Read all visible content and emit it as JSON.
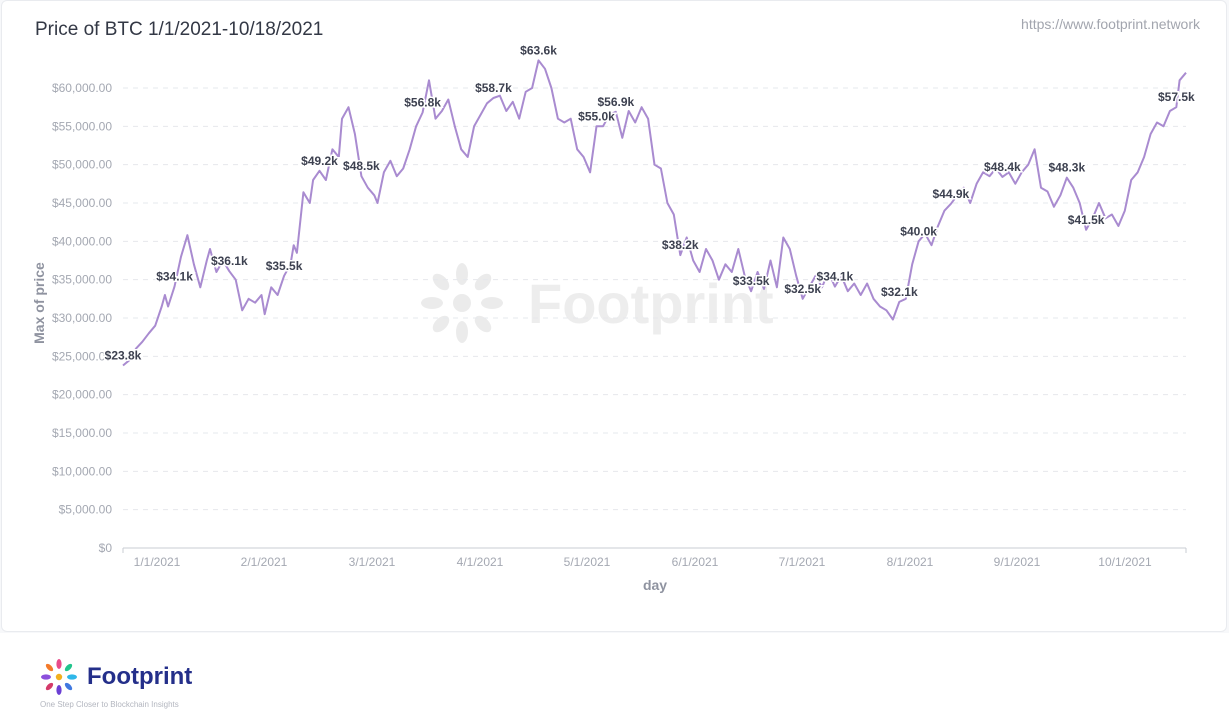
{
  "header": {
    "title": "Price of BTC 1/1/2021-10/18/2021",
    "source_url": "https://www.footprint.network"
  },
  "footer": {
    "brand_name": "Footprint",
    "tagline": "One Step Closer to Blockchain Insights"
  },
  "watermark": {
    "text": "Footprint"
  },
  "colors": {
    "line": "#a98bd0",
    "grid": "#e6e8ec",
    "axis_text": "#a4a8b2",
    "axis_title": "#8f93a0",
    "label": "#3d4150",
    "brand": "#242f8a"
  },
  "chart_data": {
    "type": "line",
    "title": "Price of BTC 1/1/2021-10/18/2021",
    "xlabel": "day",
    "ylabel": "Max of price",
    "x_ticks": [
      "1/1/2021",
      "2/1/2021",
      "3/1/2021",
      "4/1/2021",
      "5/1/2021",
      "6/1/2021",
      "7/1/2021",
      "8/1/2021",
      "9/1/2021",
      "10/1/2021"
    ],
    "y_ticks": [
      "$0",
      "$5,000.00",
      "$10,000.00",
      "$15,000.00",
      "$20,000.00",
      "$25,000.00",
      "$30,000.00",
      "$35,000.00",
      "$40,000.00",
      "$45,000.00",
      "$50,000.00",
      "$55,000.00",
      "$60,000.00"
    ],
    "ylim": [
      0,
      60000
    ],
    "grid": true,
    "series": [
      {
        "points": [
          [
            "2021-01-01",
            23800
          ],
          [
            "2021-01-03",
            24500
          ],
          [
            "2021-01-05",
            26000
          ],
          [
            "2021-01-07",
            26900
          ],
          [
            "2021-01-09",
            28000
          ],
          [
            "2021-01-11",
            29000
          ],
          [
            "2021-01-13",
            31500
          ],
          [
            "2021-01-14",
            33000
          ],
          [
            "2021-01-15",
            31500
          ],
          [
            "2021-01-17",
            34100
          ],
          [
            "2021-01-19",
            38000
          ],
          [
            "2021-01-21",
            40800
          ],
          [
            "2021-01-23",
            37000
          ],
          [
            "2021-01-25",
            34000
          ],
          [
            "2021-01-27",
            37500
          ],
          [
            "2021-01-28",
            39000
          ],
          [
            "2021-01-30",
            36000
          ],
          [
            "2021-02-01",
            37500
          ],
          [
            "2021-02-03",
            36100
          ],
          [
            "2021-02-05",
            35000
          ],
          [
            "2021-02-07",
            31000
          ],
          [
            "2021-02-09",
            32500
          ],
          [
            "2021-02-11",
            32000
          ],
          [
            "2021-02-13",
            33000
          ],
          [
            "2021-02-14",
            30500
          ],
          [
            "2021-02-16",
            34000
          ],
          [
            "2021-02-18",
            33000
          ],
          [
            "2021-02-20",
            35500
          ],
          [
            "2021-02-22",
            37000
          ],
          [
            "2021-02-23",
            39500
          ],
          [
            "2021-02-24",
            38500
          ],
          [
            "2021-02-26",
            46400
          ],
          [
            "2021-02-28",
            45000
          ],
          [
            "2021-03-01",
            48000
          ],
          [
            "2021-03-03",
            49200
          ],
          [
            "2021-03-05",
            48000
          ],
          [
            "2021-03-07",
            52000
          ],
          [
            "2021-03-09",
            51000
          ],
          [
            "2021-03-10",
            56000
          ],
          [
            "2021-03-12",
            57500
          ],
          [
            "2021-03-14",
            54000
          ],
          [
            "2021-03-16",
            48500
          ],
          [
            "2021-03-18",
            47000
          ],
          [
            "2021-03-20",
            46000
          ],
          [
            "2021-03-21",
            45000
          ],
          [
            "2021-03-23",
            49000
          ],
          [
            "2021-03-25",
            50500
          ],
          [
            "2021-03-27",
            48500
          ],
          [
            "2021-03-29",
            49500
          ],
          [
            "2021-03-31",
            52000
          ],
          [
            "2021-04-02",
            55000
          ],
          [
            "2021-04-04",
            56800
          ],
          [
            "2021-04-06",
            61000
          ],
          [
            "2021-04-08",
            56000
          ],
          [
            "2021-04-10",
            57000
          ],
          [
            "2021-04-12",
            58500
          ],
          [
            "2021-04-14",
            55000
          ],
          [
            "2021-04-16",
            52000
          ],
          [
            "2021-04-18",
            51000
          ],
          [
            "2021-04-20",
            55000
          ],
          [
            "2021-04-22",
            56500
          ],
          [
            "2021-04-24",
            58000
          ],
          [
            "2021-04-26",
            58700
          ],
          [
            "2021-04-28",
            59000
          ],
          [
            "2021-04-30",
            57000
          ],
          [
            "2021-05-02",
            58200
          ],
          [
            "2021-05-04",
            56000
          ],
          [
            "2021-05-06",
            59500
          ],
          [
            "2021-05-08",
            60000
          ],
          [
            "2021-05-10",
            63600
          ],
          [
            "2021-05-12",
            62500
          ],
          [
            "2021-05-14",
            60000
          ],
          [
            "2021-05-16",
            56000
          ],
          [
            "2021-05-18",
            55500
          ],
          [
            "2021-05-20",
            56000
          ],
          [
            "2021-05-22",
            52000
          ],
          [
            "2021-05-24",
            51000
          ],
          [
            "2021-05-26",
            49000
          ],
          [
            "2021-05-28",
            55000
          ],
          [
            "2021-05-30",
            55000
          ],
          [
            "2021-06-01",
            56500
          ],
          [
            "2021-06-03",
            56900
          ],
          [
            "2021-06-05",
            53500
          ],
          [
            "2021-06-07",
            57000
          ],
          [
            "2021-06-09",
            55500
          ],
          [
            "2021-06-11",
            57500
          ],
          [
            "2021-06-13",
            56000
          ],
          [
            "2021-06-15",
            50000
          ],
          [
            "2021-06-17",
            49500
          ],
          [
            "2021-06-19",
            45000
          ],
          [
            "2021-06-21",
            43500
          ],
          [
            "2021-06-23",
            38200
          ],
          [
            "2021-06-25",
            40500
          ],
          [
            "2021-06-27",
            37500
          ],
          [
            "2021-06-29",
            36000
          ],
          [
            "2021-07-01",
            39000
          ],
          [
            "2021-07-03",
            37500
          ],
          [
            "2021-07-05",
            35000
          ],
          [
            "2021-07-07",
            37000
          ],
          [
            "2021-07-09",
            36000
          ],
          [
            "2021-07-11",
            39000
          ],
          [
            "2021-07-13",
            35500
          ],
          [
            "2021-07-15",
            33500
          ],
          [
            "2021-07-17",
            36000
          ],
          [
            "2021-07-19",
            33800
          ],
          [
            "2021-07-21",
            37500
          ],
          [
            "2021-07-23",
            34000
          ],
          [
            "2021-07-25",
            40500
          ],
          [
            "2021-07-27",
            39000
          ],
          [
            "2021-07-29",
            35500
          ],
          [
            "2021-07-31",
            32500
          ],
          [
            "2021-08-02",
            34000
          ],
          [
            "2021-08-04",
            35500
          ],
          [
            "2021-08-06",
            34000
          ],
          [
            "2021-08-08",
            36000
          ],
          [
            "2021-08-10",
            34100
          ],
          [
            "2021-08-12",
            35500
          ],
          [
            "2021-08-14",
            33500
          ],
          [
            "2021-08-16",
            34500
          ],
          [
            "2021-08-18",
            33000
          ],
          [
            "2021-08-20",
            34500
          ],
          [
            "2021-08-22",
            32500
          ],
          [
            "2021-08-24",
            31500
          ],
          [
            "2021-08-26",
            31000
          ],
          [
            "2021-08-28",
            29800
          ],
          [
            "2021-08-30",
            32100
          ],
          [
            "2021-09-01",
            32500
          ],
          [
            "2021-09-03",
            37000
          ],
          [
            "2021-09-05",
            40000
          ],
          [
            "2021-09-07",
            41000
          ],
          [
            "2021-09-09",
            39500
          ],
          [
            "2021-09-11",
            42000
          ],
          [
            "2021-09-13",
            44000
          ],
          [
            "2021-09-15",
            44900
          ],
          [
            "2021-09-17",
            46000
          ],
          [
            "2021-09-19",
            47000
          ],
          [
            "2021-09-21",
            45000
          ],
          [
            "2021-09-23",
            47500
          ],
          [
            "2021-09-25",
            49000
          ],
          [
            "2021-09-27",
            48500
          ],
          [
            "2021-09-29",
            49500
          ],
          [
            "2021-10-01",
            48400
          ],
          [
            "2021-10-03",
            49000
          ],
          [
            "2021-10-05",
            47500
          ],
          [
            "2021-10-07",
            49000
          ],
          [
            "2021-10-09",
            50000
          ],
          [
            "2021-10-11",
            52000
          ],
          [
            "2021-10-13",
            47000
          ],
          [
            "2021-10-15",
            46500
          ],
          [
            "2021-10-17",
            44500
          ],
          [
            "2021-10-19",
            46000
          ],
          [
            "2021-10-21",
            48300
          ],
          [
            "2021-10-23",
            47000
          ],
          [
            "2021-10-25",
            45000
          ],
          [
            "2021-10-27",
            41500
          ],
          [
            "2021-10-29",
            43000
          ],
          [
            "2021-10-31",
            45000
          ],
          [
            "2021-11-02",
            43000
          ],
          [
            "2021-11-04",
            43500
          ],
          [
            "2021-11-06",
            42000
          ],
          [
            "2021-11-08",
            44000
          ],
          [
            "2021-11-10",
            48000
          ],
          [
            "2021-11-12",
            49000
          ],
          [
            "2021-11-14",
            51000
          ],
          [
            "2021-11-16",
            54000
          ],
          [
            "2021-11-18",
            55500
          ],
          [
            "2021-11-20",
            55000
          ],
          [
            "2021-11-22",
            57000
          ],
          [
            "2021-11-24",
            57500
          ],
          [
            "2021-11-25",
            61000
          ],
          [
            "2021-11-27",
            62000
          ]
        ]
      }
    ],
    "data_labels": [
      {
        "date": "2021-01-01",
        "value": 23800,
        "text": "$23.8k"
      },
      {
        "date": "2021-01-17",
        "value": 34100,
        "text": "$34.1k"
      },
      {
        "date": "2021-02-03",
        "value": 36100,
        "text": "$36.1k"
      },
      {
        "date": "2021-02-20",
        "value": 35500,
        "text": "$35.5k"
      },
      {
        "date": "2021-03-03",
        "value": 49200,
        "text": "$49.2k"
      },
      {
        "date": "2021-03-16",
        "value": 48500,
        "text": "$48.5k"
      },
      {
        "date": "2021-04-04",
        "value": 56800,
        "text": "$56.8k"
      },
      {
        "date": "2021-04-26",
        "value": 58700,
        "text": "$58.7k"
      },
      {
        "date": "2021-05-10",
        "value": 63600,
        "text": "$63.6k"
      },
      {
        "date": "2021-05-28",
        "value": 55000,
        "text": "$55.0k"
      },
      {
        "date": "2021-06-03",
        "value": 56900,
        "text": "$56.9k"
      },
      {
        "date": "2021-06-23",
        "value": 38200,
        "text": "$38.2k"
      },
      {
        "date": "2021-07-15",
        "value": 33500,
        "text": "$33.5k"
      },
      {
        "date": "2021-07-31",
        "value": 32500,
        "text": "$32.5k"
      },
      {
        "date": "2021-08-10",
        "value": 34100,
        "text": "$34.1k"
      },
      {
        "date": "2021-08-30",
        "value": 32100,
        "text": "$32.1k"
      },
      {
        "date": "2021-09-05",
        "value": 40000,
        "text": "$40.0k"
      },
      {
        "date": "2021-09-15",
        "value": 44900,
        "text": "$44.9k"
      },
      {
        "date": "2021-10-01",
        "value": 48400,
        "text": "$48.4k"
      },
      {
        "date": "2021-10-21",
        "value": 48300,
        "text": "$48.3k"
      },
      {
        "date": "2021-10-27",
        "value": 41500,
        "text": "$41.5k"
      },
      {
        "date": "2021-11-24",
        "value": 57500,
        "text": "$57.5k"
      }
    ]
  }
}
